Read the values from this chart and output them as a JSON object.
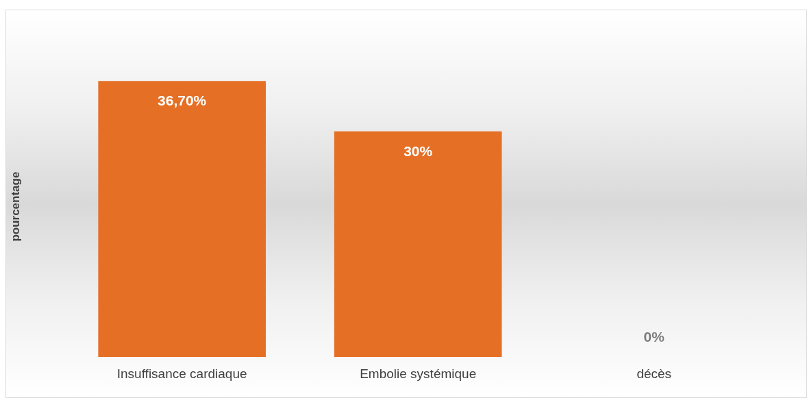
{
  "chart_data": {
    "type": "bar",
    "ylabel": "pourcentage",
    "categories": [
      "Insuffisance cardiaque",
      "Embolie systémique",
      "décès"
    ],
    "values": [
      36.7,
      30,
      0
    ],
    "color": "#e56f24",
    "value_labels": [
      "36,70%",
      "30%",
      "0%"
    ],
    "grid": false,
    "legend": false
  }
}
